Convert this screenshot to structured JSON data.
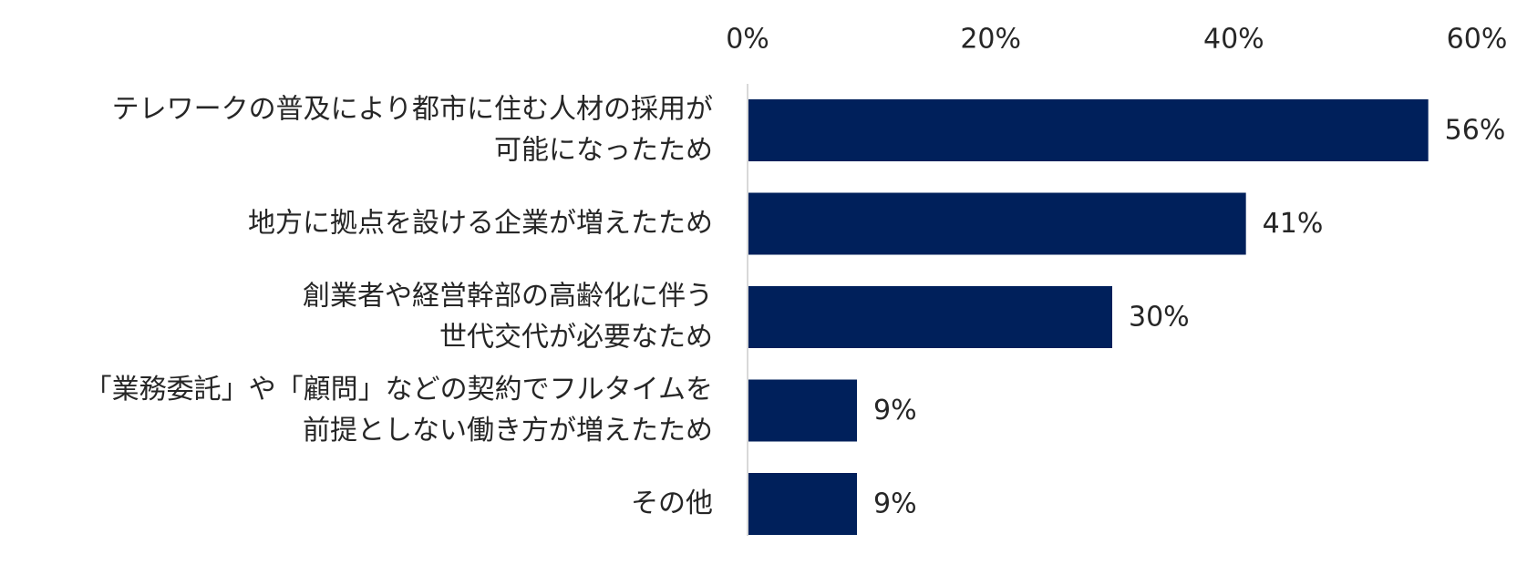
{
  "chart_data": {
    "type": "bar",
    "orientation": "horizontal",
    "categories": [
      [
        "テレワークの普及により都市に住む人材の採用が",
        "可能になったため"
      ],
      [
        "地方に拠点を設ける企業が増えたため"
      ],
      [
        "創業者や経営幹部の高齢化に伴う",
        "世代交代が必要なため"
      ],
      [
        "「業務委託」や「顧問」などの契約でフルタイムを",
        "前提としない働き方が増えたため"
      ],
      [
        "その他"
      ]
    ],
    "values": [
      56,
      41,
      30,
      9,
      9
    ],
    "data_labels": [
      "56%",
      "41%",
      "30%",
      "9%",
      "9%"
    ],
    "xlim": [
      0,
      60
    ],
    "x_ticks": [
      0,
      20,
      40,
      60
    ],
    "x_tick_labels": [
      "0%",
      "20%",
      "40%",
      "60%"
    ],
    "x_axis_position": "top",
    "grid": false,
    "legend": "none",
    "bar_color": "#00205b",
    "axis_line_color": "#d9d9d9",
    "text_color": "#262626"
  }
}
